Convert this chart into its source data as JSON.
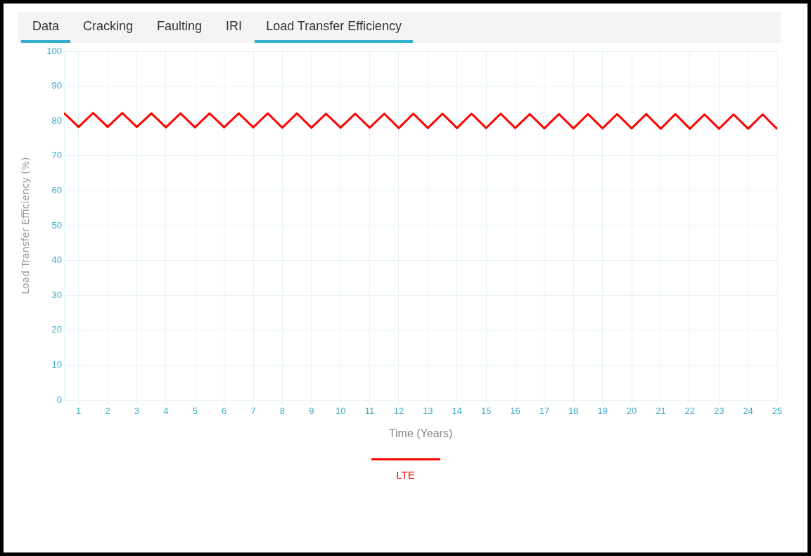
{
  "chart_data": {
    "type": "line",
    "title": "Load Transfer Efficiency",
    "annotations": [
      "Data",
      "Cracking",
      "Faulting",
      "IRI"
    ],
    "xlabel": "Time (Years)",
    "ylabel": "Load Transfer Efficiency (%)",
    "x": [
      0.5,
      1,
      1.5,
      2,
      2.5,
      3,
      3.5,
      4,
      4.5,
      5,
      5.5,
      6,
      6.5,
      7,
      7.5,
      8,
      8.5,
      9,
      9.5,
      10,
      10.5,
      11,
      11.5,
      12,
      12.5,
      13,
      13.5,
      14,
      14.5,
      15,
      15.5,
      16,
      16.5,
      17,
      17.5,
      18,
      18.5,
      19,
      19.5,
      20,
      20.5,
      21,
      21.5,
      22,
      22.5,
      23,
      23.5,
      24,
      24.5,
      25
    ],
    "series": [
      {
        "name": "LTE",
        "color": "#ff0000",
        "values": [
          82.3,
          78.3,
          82.3,
          78.3,
          82.3,
          78.3,
          82.2,
          78.2,
          82.2,
          78.2,
          82.2,
          78.2,
          82.2,
          78.2,
          82.2,
          78.1,
          82.2,
          78.1,
          82.1,
          78.1,
          82.1,
          78.1,
          82.1,
          78.0,
          82.1,
          78.0,
          82.1,
          78.0,
          82.1,
          78.0,
          82.1,
          78.0,
          82.0,
          77.9,
          82.0,
          77.9,
          82.0,
          77.9,
          82.0,
          77.9,
          82.0,
          77.8,
          82.0,
          77.8,
          81.9,
          77.8,
          81.9,
          77.8,
          81.9,
          77.7
        ]
      }
    ],
    "xlim": [
      0.5,
      25
    ],
    "xticks": [
      1,
      2,
      3,
      4,
      5,
      6,
      7,
      8,
      9,
      10,
      11,
      12,
      13,
      14,
      15,
      16,
      17,
      18,
      19,
      20,
      21,
      22,
      23,
      24,
      25
    ],
    "ylim": [
      0,
      100
    ],
    "yticks": [
      0,
      10,
      20,
      30,
      40,
      50,
      60,
      70,
      80,
      90,
      100
    ],
    "grid": true,
    "legend": "bottom",
    "marker": "none",
    "line_style": "solid"
  }
}
